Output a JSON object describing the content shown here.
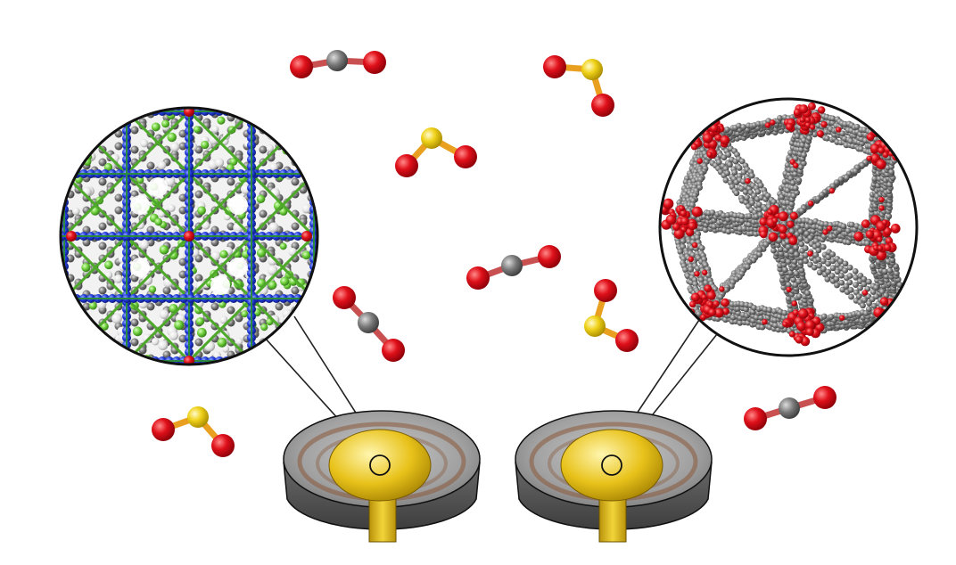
{
  "colors": {
    "oxygen": "#e0101a",
    "carbon": "#7a7a7a",
    "sulfur": "#f0d21a",
    "nitrogen": "#1f3ad6",
    "fluorine": "#6fcf3c",
    "hydrogen": "#e8e8e8",
    "metal": "#8fd0a0",
    "gold": "#e8c21a",
    "sensor_base": "#8e8e8e"
  },
  "molecules": [
    {
      "type": "CO2",
      "icon": "co2-molecule"
    },
    {
      "type": "SO2",
      "icon": "so2-molecule"
    },
    {
      "type": "SO2",
      "icon": "so2-molecule"
    },
    {
      "type": "CO2",
      "icon": "co2-molecule"
    },
    {
      "type": "CO2",
      "icon": "co2-molecule"
    },
    {
      "type": "SO2",
      "icon": "so2-molecule"
    },
    {
      "type": "SO2",
      "icon": "so2-molecule"
    },
    {
      "type": "CO2",
      "icon": "co2-molecule"
    }
  ],
  "frameworks": [
    {
      "icon": "mof-structure-left",
      "palette": [
        "nitrogen",
        "fluorine",
        "hydrogen",
        "carbon"
      ]
    },
    {
      "icon": "mof-structure-right",
      "palette": [
        "carbon",
        "oxygen"
      ]
    }
  ],
  "sensors": [
    {
      "icon": "qcm-sensor-left"
    },
    {
      "icon": "qcm-sensor-right"
    }
  ]
}
